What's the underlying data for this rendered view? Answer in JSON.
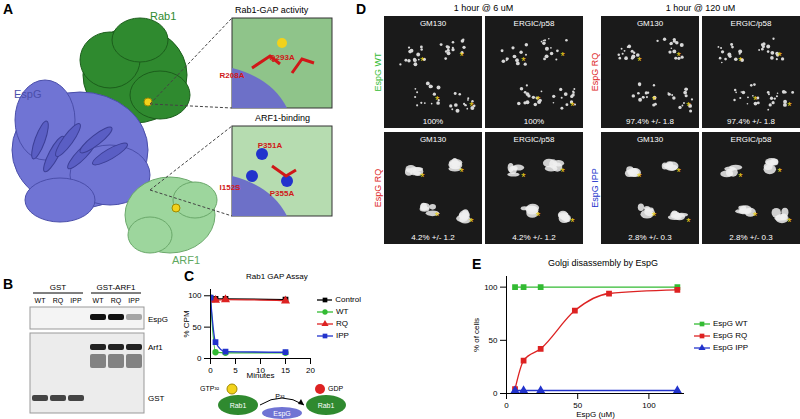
{
  "panel_labels": [
    "A",
    "B",
    "C",
    "D",
    "E"
  ],
  "panel_a": {
    "molecules": [
      "EspG",
      "Rab1",
      "ARF1"
    ],
    "insets": [
      {
        "title": "Rab1-GAP activity",
        "residues": [
          "R208A",
          "Q293A"
        ]
      },
      {
        "title": "ARF1-binding",
        "residues": [
          "P351A",
          "I152S",
          "P355A"
        ]
      }
    ]
  },
  "panel_b": {
    "groups": [
      {
        "label": "GST",
        "lanes": [
          "WT",
          "RQ",
          "IPP"
        ]
      },
      {
        "label": "GST-ARF1",
        "lanes": [
          "WT",
          "RQ",
          "IPP"
        ]
      }
    ],
    "rows": [
      "EspG",
      "Arf1",
      "GST"
    ]
  },
  "panel_c_diagram": {
    "substrate": "GTP³²",
    "product": "GDP",
    "proteins": [
      "Rab1",
      "Rab1"
    ],
    "phosphate": "P³²",
    "enzyme": "EspG"
  },
  "panel_d": {
    "marker_text": "*",
    "columns": [
      {
        "title": "1 hour @ 6 uM",
        "rows": [
          {
            "label": "EspG WT",
            "color": "#33bb33",
            "images": [
              {
                "stain": "GM130",
                "value": "100%"
              },
              {
                "stain": "ERGIC/p58",
                "value": "100%"
              }
            ]
          },
          {
            "label": "EspG RQ",
            "color": "#dd2222",
            "images": [
              {
                "stain": "GM130",
                "value": "4.2% +/- 1.2"
              },
              {
                "stain": "ERGIC/p58",
                "value": "4.2% +/- 1.2"
              }
            ]
          }
        ]
      },
      {
        "title": "1 hour @ 120 uM",
        "rows": [
          {
            "label": "EspG RQ",
            "color": "#dd2222",
            "images": [
              {
                "stain": "GM130",
                "value": "97.4% +/- 1.8"
              },
              {
                "stain": "ERGIC/p58",
                "value": "97.4% +/- 1.8"
              }
            ]
          },
          {
            "label": "EspG IPP",
            "color": "#2233cc",
            "images": [
              {
                "stain": "GM130",
                "value": "2.8% +/- 0.3"
              },
              {
                "stain": "ERGIC/p58",
                "value": "2.8% +/- 0.3"
              }
            ]
          }
        ]
      }
    ]
  },
  "chart_data": [
    {
      "type": "line",
      "title": "Rab1 GAP Assay",
      "x_label": "Minutes",
      "y_label": "% CPM",
      "x": [
        0,
        1,
        3,
        15
      ],
      "xlim": [
        0,
        20
      ],
      "xticks": [
        0,
        5,
        10,
        15,
        20
      ],
      "ylim": [
        0,
        110
      ],
      "yticks": [
        0,
        50,
        100
      ],
      "grid": false,
      "legend": "right",
      "series": [
        {
          "name": "Control",
          "color": "#000000",
          "marker": "square",
          "values": [
            96,
            95,
            95,
            94
          ]
        },
        {
          "name": "WT",
          "color": "#33bb33",
          "marker": "circle",
          "values": [
            97,
            10,
            9,
            9
          ]
        },
        {
          "name": "RQ",
          "color": "#dd2222",
          "marker": "triangle",
          "values": [
            94,
            93,
            94,
            92
          ]
        },
        {
          "name": "IPP",
          "color": "#2233cc",
          "marker": "square",
          "values": [
            97,
            26,
            11,
            10
          ]
        }
      ]
    },
    {
      "type": "line",
      "title": "Golgi disassembly by EspG",
      "x_label": "EspG (uM)",
      "y_label": "% of cells",
      "xlim": [
        0,
        125
      ],
      "xticks": [
        0,
        50,
        100
      ],
      "ylim": [
        0,
        110
      ],
      "yticks": [
        0,
        50,
        100
      ],
      "grid": false,
      "legend": "right",
      "series": [
        {
          "name": "EspG WT",
          "color": "#33bb33",
          "marker": "square",
          "x": [
            6,
            12,
            24,
            120
          ],
          "values": [
            100,
            100,
            100,
            100
          ]
        },
        {
          "name": "EspG RQ",
          "color": "#dd2222",
          "marker": "square",
          "x": [
            6,
            12,
            24,
            48,
            72,
            120
          ],
          "values": [
            4.2,
            31,
            42,
            78,
            94,
            97.4
          ]
        },
        {
          "name": "EspG IPP",
          "color": "#2233cc",
          "marker": "triangle",
          "x": [
            6,
            12,
            24,
            120
          ],
          "values": [
            2.8,
            2.8,
            2.8,
            2.8
          ]
        }
      ]
    }
  ]
}
